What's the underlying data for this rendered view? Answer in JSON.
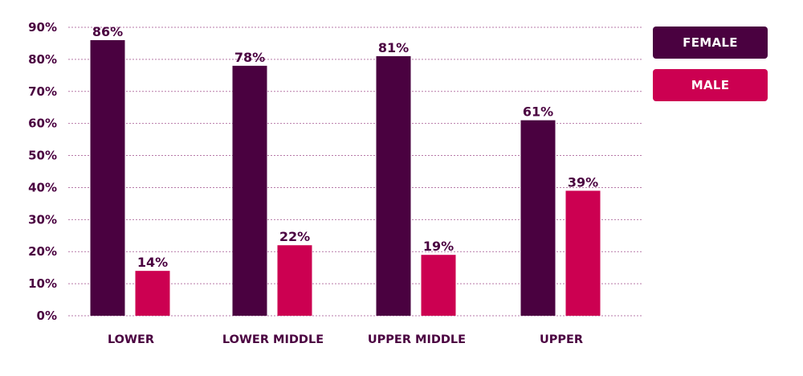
{
  "chart_data": {
    "type": "bar",
    "title": "",
    "xlabel": "",
    "ylabel": "",
    "categories": [
      "LOWER",
      "LOWER MIDDLE",
      "UPPER MIDDLE",
      "UPPER"
    ],
    "series": [
      {
        "name": "FEMALE",
        "values": [
          86,
          78,
          81,
          61
        ],
        "labels": [
          "86%",
          "78%",
          "81%",
          "61%"
        ],
        "color": "#4a0140"
      },
      {
        "name": "MALE",
        "values": [
          14,
          22,
          19,
          39
        ],
        "labels": [
          "14%",
          "22%",
          "19%",
          "39%"
        ],
        "color": "#cc0051"
      }
    ],
    "ylim": [
      0,
      90
    ],
    "yticks": [
      0,
      10,
      20,
      30,
      40,
      50,
      60,
      70,
      80,
      90
    ],
    "ytick_labels": [
      "0%",
      "10%",
      "20%",
      "30%",
      "40%",
      "50%",
      "60%",
      "70%",
      "80%",
      "90%"
    ],
    "grid": true,
    "legend_position": "top-right"
  },
  "colors": {
    "axis_text": "#4a0140",
    "grid": "#b77aa8"
  }
}
